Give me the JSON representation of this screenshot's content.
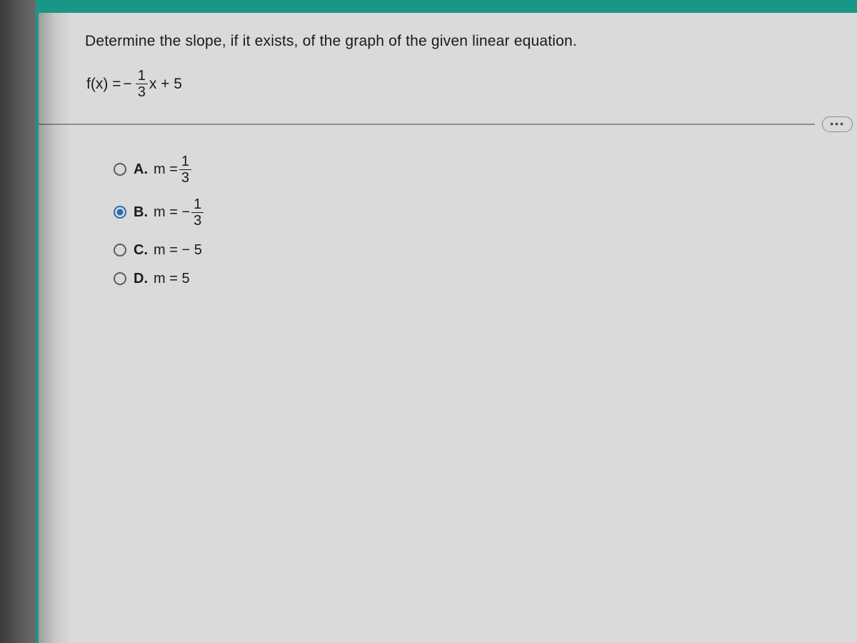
{
  "question": {
    "prompt": "Determine the slope, if it exists, of the graph of the given linear equation.",
    "equation": {
      "lhs": "f(x) = ",
      "sign": "−",
      "frac_num": "1",
      "frac_den": "3",
      "tail": "x + 5"
    }
  },
  "options": {
    "a": {
      "letter": "A.",
      "prefix": "m = ",
      "frac_num": "1",
      "frac_den": "3",
      "selected": false
    },
    "b": {
      "letter": "B.",
      "prefix": "m = − ",
      "frac_num": "1",
      "frac_den": "3",
      "selected": true
    },
    "c": {
      "letter": "C.",
      "text": "m = − 5",
      "selected": false
    },
    "d": {
      "letter": "D.",
      "text": "m = 5",
      "selected": false
    }
  },
  "ellipsis": "•••",
  "colors": {
    "accent": "#1a9688",
    "radio_selected": "#2a6db0",
    "background": "#d9dadb",
    "text": "#1a1a1a",
    "divider": "#8e9092"
  }
}
